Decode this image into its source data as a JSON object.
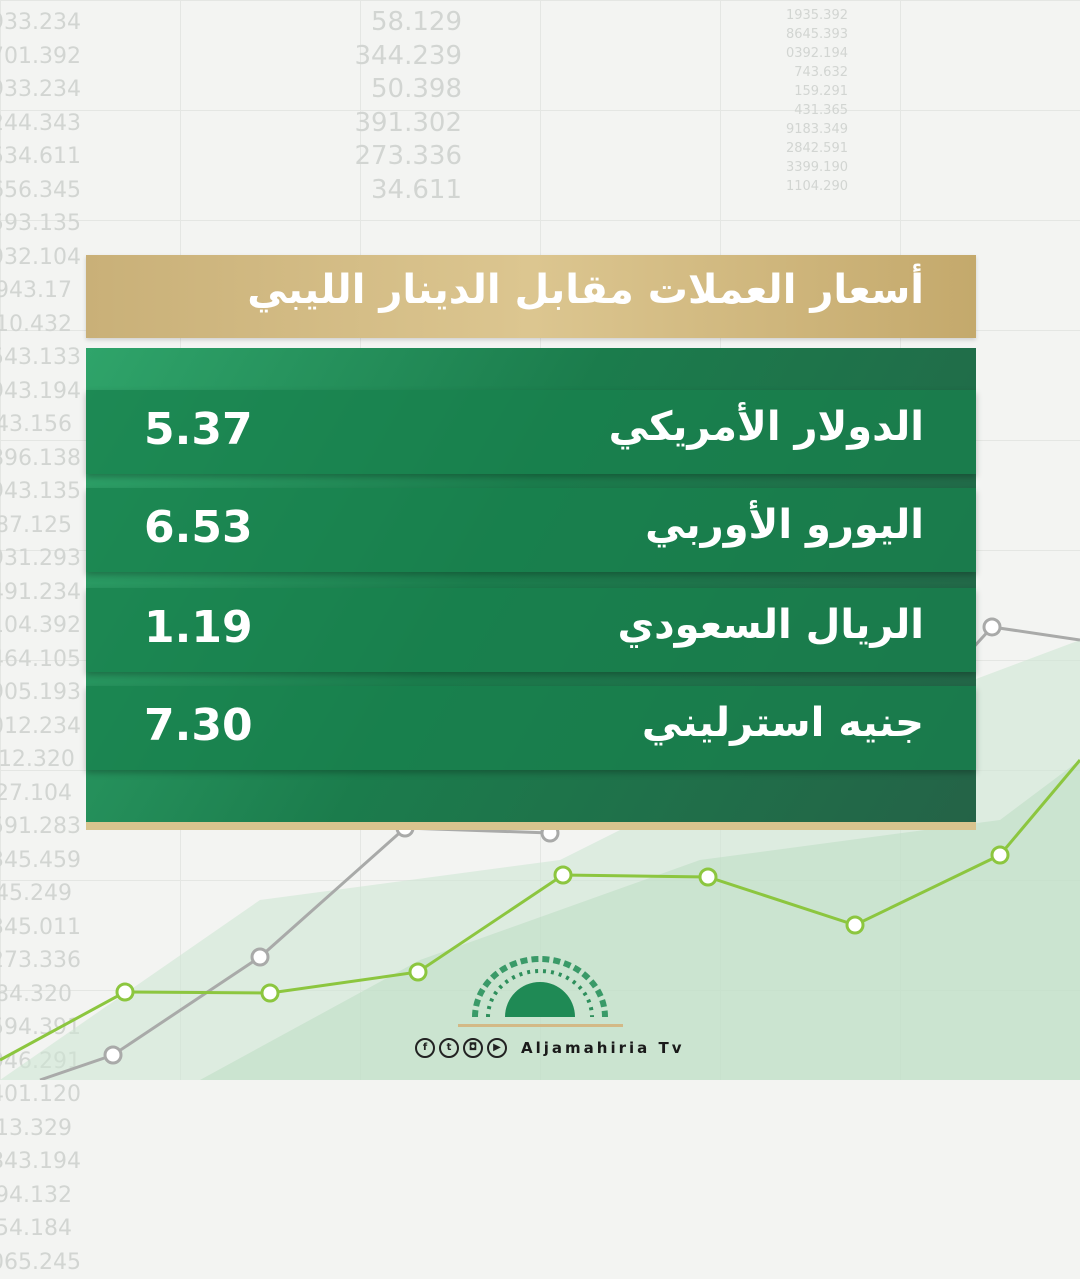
{
  "title": "أسعار العملات مقابل الدينار الليبي",
  "currencies": [
    {
      "name": "الدولار الأمريكي",
      "rate": "5.37"
    },
    {
      "name": "اليورو الأوربي",
      "rate": "6.53"
    },
    {
      "name": "الريال السعودي",
      "rate": "1.19"
    },
    {
      "name": "جنيه استرليني",
      "rate": "7.30"
    }
  ],
  "footer": {
    "brand": "Aljamahiria Tv",
    "social_icons": [
      "facebook-icon",
      "twitter-icon",
      "instagram-icon",
      "youtube-icon"
    ]
  },
  "background_numbers": {
    "col1": [
      "933.234",
      "701.392",
      "933.234",
      "244.343",
      "534.611",
      "656.345",
      "593.135",
      "932.104",
      "943.17",
      "10.432",
      "543.133",
      "943.194",
      "43.156",
      "896.138",
      "943.135",
      "87.125",
      "931.293",
      "491.234",
      "104.392",
      "464.105",
      "905.193",
      "012.234",
      "-12.320",
      "27.104",
      "591.283",
      "345.459",
      "45.249",
      "345.011",
      "273.336",
      "84.320",
      "594.391",
      "946.291",
      "401.120",
      "13.329",
      "843.194",
      "94.132",
      "54.184",
      "065.245"
    ],
    "col2": [
      "58.129",
      "344.239",
      "50.398",
      "391.302",
      "273.336",
      "34.611"
    ],
    "col3": [
      "1935.392",
      "8645.393",
      "0392.194",
      "743.632",
      "159.291",
      "431.365",
      "9183.349",
      "2842.591",
      "3399.190",
      "1104.290"
    ]
  },
  "colors": {
    "gold": "#d8c48e",
    "green": "#1b7c4c",
    "chart_green": "#8cc63f",
    "chart_gray": "#a9aaa9"
  }
}
